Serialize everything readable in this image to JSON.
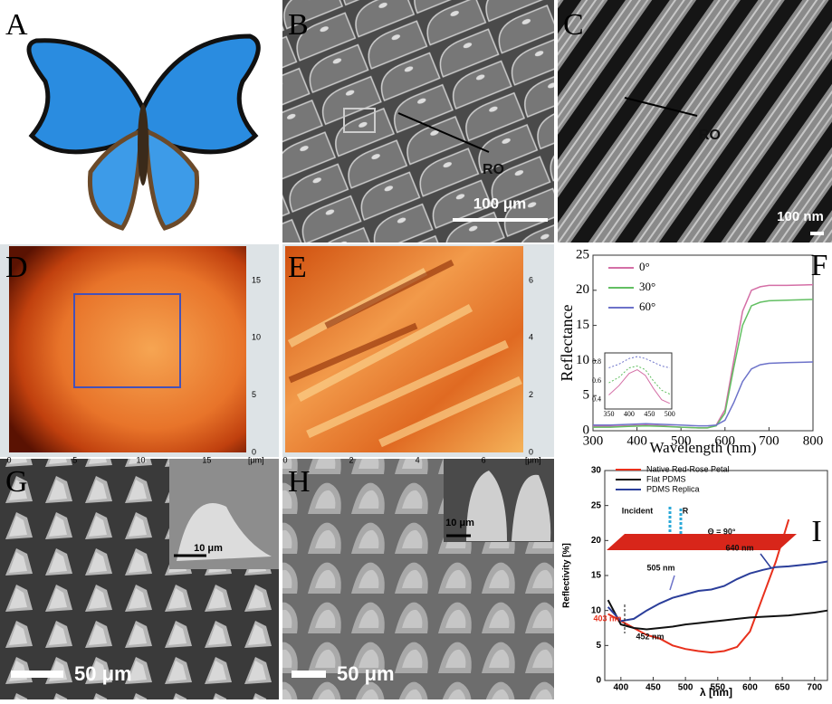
{
  "panels": {
    "a": {
      "label": "A"
    },
    "b": {
      "label": "B",
      "annotation": "RO",
      "scale_bar": "100 μm"
    },
    "c": {
      "label": "C",
      "annotation": "RO",
      "scale_bar": "100 nm"
    },
    "d": {
      "label": "D",
      "x_ticks": [
        0,
        5,
        10,
        15
      ],
      "x_unit": "[μm]",
      "y_ticks": [
        0,
        5,
        10,
        15
      ]
    },
    "e": {
      "label": "E",
      "x_ticks": [
        0,
        2,
        4,
        6
      ],
      "x_unit": "[μm]",
      "y_ticks": [
        0,
        2,
        4,
        6
      ]
    },
    "g": {
      "label": "G",
      "scale_bar": "50 μm",
      "inset_scale_bar": "10 μm"
    },
    "h": {
      "label": "H",
      "scale_bar": "50 μm",
      "inset_scale_bar": "10 μm"
    }
  },
  "chart_data": [
    {
      "type": "line",
      "panel_label": "F",
      "x_label": "Wavelength (nm)",
      "y_label": "Reflectance",
      "x": [
        300,
        340,
        380,
        420,
        460,
        500,
        540,
        560,
        580,
        600,
        620,
        640,
        660,
        680,
        700,
        740,
        800
      ],
      "series": [
        {
          "name": "0°",
          "color": "#d46fa6",
          "values": [
            0.6,
            0.6,
            0.7,
            0.8,
            0.7,
            0.5,
            0.4,
            0.4,
            0.8,
            3,
            10,
            17,
            20,
            20.5,
            20.7,
            20.7,
            20.8
          ]
        },
        {
          "name": "30°",
          "color": "#62bf62",
          "values": [
            0.5,
            0.5,
            0.6,
            0.7,
            0.6,
            0.5,
            0.4,
            0.4,
            0.7,
            2.5,
            9,
            15,
            17.8,
            18.3,
            18.5,
            18.6,
            18.7
          ]
        },
        {
          "name": "60°",
          "color": "#6c72c9",
          "values": [
            0.8,
            0.8,
            0.9,
            1,
            0.9,
            0.8,
            0.7,
            0.7,
            0.8,
            1.5,
            4,
            7,
            8.8,
            9.4,
            9.6,
            9.7,
            9.8
          ]
        }
      ],
      "xlim": [
        300,
        800
      ],
      "xticks": [
        300,
        400,
        500,
        600,
        700,
        800
      ],
      "ylim": [
        0,
        25
      ],
      "yticks": [
        0,
        5,
        10,
        15,
        20,
        25
      ]
    },
    {
      "type": "line",
      "x": [
        350,
        375,
        400,
        420,
        440,
        460,
        480,
        500
      ],
      "series": [
        {
          "color": "#d46fa6",
          "values": [
            0.45,
            0.55,
            0.68,
            0.72,
            0.66,
            0.52,
            0.4,
            0.36
          ]
        },
        {
          "color": "#62bf62",
          "values": [
            0.58,
            0.64,
            0.74,
            0.76,
            0.72,
            0.6,
            0.5,
            0.46
          ]
        },
        {
          "color": "#6c72c9",
          "values": [
            0.74,
            0.78,
            0.84,
            0.86,
            0.84,
            0.8,
            0.76,
            0.74
          ]
        }
      ],
      "xlim": [
        340,
        505
      ],
      "xticks": [
        350,
        400,
        450,
        500
      ],
      "ylim": [
        0.3,
        0.9
      ],
      "yticks": [
        0.4,
        0.6,
        0.8
      ]
    },
    {
      "type": "line",
      "panel_label": "I",
      "x_label": "λ [nm]",
      "y_label": "Reflectivity [%]",
      "x": [
        380,
        400,
        420,
        440,
        460,
        480,
        500,
        520,
        540,
        560,
        580,
        600,
        620,
        640,
        660,
        680,
        700,
        720
      ],
      "series": [
        {
          "name": "Native Red-Rose Petal",
          "color": "#e8301c",
          "values": [
            9.5,
            8.5,
            7.5,
            6.5,
            6,
            5,
            4.5,
            4.2,
            4,
            4.2,
            4.8,
            7,
            12,
            17,
            23,
            null,
            null,
            null
          ]
        },
        {
          "name": "Flat PDMS",
          "color": "#111111",
          "values": [
            11.5,
            8,
            7.5,
            7.3,
            7.5,
            7.7,
            8,
            8.2,
            8.4,
            8.6,
            8.8,
            9,
            9.1,
            9.2,
            9.3,
            9.5,
            9.7,
            10
          ]
        },
        {
          "name": "PDMS Replica",
          "color": "#2b3e9a",
          "values": [
            10.5,
            8.5,
            8.8,
            10,
            11,
            11.8,
            12.3,
            12.8,
            13,
            13.5,
            14.5,
            15.3,
            15.8,
            16.2,
            16.3,
            16.5,
            16.7,
            17
          ]
        }
      ],
      "annotations": [
        "403 nm",
        "452 nm",
        "505 nm",
        "640 nm",
        "Incident",
        "R",
        "Θ = 90°"
      ],
      "xlim": [
        375,
        720
      ],
      "xticks": [
        400,
        450,
        500,
        550,
        600,
        650,
        700
      ],
      "ylim": [
        0,
        30
      ],
      "yticks": [
        0,
        5,
        10,
        15,
        20,
        25,
        30
      ]
    }
  ]
}
